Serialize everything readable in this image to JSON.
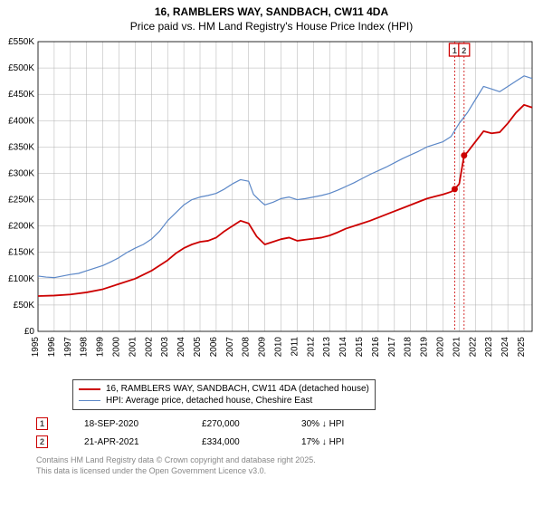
{
  "title_line1": "16, RAMBLERS WAY, SANDBACH, CW11 4DA",
  "title_line2": "Price paid vs. HM Land Registry's House Price Index (HPI)",
  "chart": {
    "type": "line",
    "background_color": "#ffffff",
    "grid_color": "#b0b0b0",
    "axis_color": "#000000",
    "tick_fontsize": 10,
    "xlim": [
      1995,
      2025.5
    ],
    "ylim": [
      0,
      550000
    ],
    "ytick_step": 50000,
    "ytick_labels": [
      "£0",
      "£50K",
      "£100K",
      "£150K",
      "£200K",
      "£250K",
      "£300K",
      "£350K",
      "£400K",
      "£450K",
      "£500K",
      "£550K"
    ],
    "xtick_step": 1,
    "xtick_labels": [
      "1995",
      "1996",
      "1997",
      "1998",
      "1999",
      "2000",
      "2001",
      "2002",
      "2003",
      "2004",
      "2005",
      "2006",
      "2007",
      "2008",
      "2009",
      "2010",
      "2011",
      "2012",
      "2013",
      "2014",
      "2015",
      "2016",
      "2017",
      "2018",
      "2019",
      "2020",
      "2021",
      "2022",
      "2023",
      "2024",
      "2025"
    ],
    "series": [
      {
        "name": "hpi",
        "label": "HPI: Average price, detached house, Cheshire East",
        "color": "#5b87c7",
        "line_width": 1.2,
        "data": [
          [
            1995.0,
            105000
          ],
          [
            1995.5,
            103000
          ],
          [
            1996.0,
            102000
          ],
          [
            1996.5,
            105000
          ],
          [
            1997.0,
            108000
          ],
          [
            1997.5,
            110000
          ],
          [
            1998.0,
            115000
          ],
          [
            1998.5,
            120000
          ],
          [
            1999.0,
            125000
          ],
          [
            1999.5,
            132000
          ],
          [
            2000.0,
            140000
          ],
          [
            2000.5,
            150000
          ],
          [
            2001.0,
            158000
          ],
          [
            2001.5,
            165000
          ],
          [
            2002.0,
            175000
          ],
          [
            2002.5,
            190000
          ],
          [
            2003.0,
            210000
          ],
          [
            2003.5,
            225000
          ],
          [
            2004.0,
            240000
          ],
          [
            2004.5,
            250000
          ],
          [
            2005.0,
            255000
          ],
          [
            2005.5,
            258000
          ],
          [
            2006.0,
            262000
          ],
          [
            2006.5,
            270000
          ],
          [
            2007.0,
            280000
          ],
          [
            2007.5,
            288000
          ],
          [
            2008.0,
            285000
          ],
          [
            2008.3,
            260000
          ],
          [
            2008.7,
            248000
          ],
          [
            2009.0,
            240000
          ],
          [
            2009.5,
            245000
          ],
          [
            2010.0,
            252000
          ],
          [
            2010.5,
            255000
          ],
          [
            2011.0,
            250000
          ],
          [
            2011.5,
            252000
          ],
          [
            2012.0,
            255000
          ],
          [
            2012.5,
            258000
          ],
          [
            2013.0,
            262000
          ],
          [
            2013.5,
            268000
          ],
          [
            2014.0,
            275000
          ],
          [
            2014.5,
            282000
          ],
          [
            2015.0,
            290000
          ],
          [
            2015.5,
            298000
          ],
          [
            2016.0,
            305000
          ],
          [
            2016.5,
            312000
          ],
          [
            2017.0,
            320000
          ],
          [
            2017.5,
            328000
          ],
          [
            2018.0,
            335000
          ],
          [
            2018.5,
            342000
          ],
          [
            2019.0,
            350000
          ],
          [
            2019.5,
            355000
          ],
          [
            2020.0,
            360000
          ],
          [
            2020.5,
            370000
          ],
          [
            2021.0,
            395000
          ],
          [
            2021.5,
            415000
          ],
          [
            2022.0,
            440000
          ],
          [
            2022.5,
            465000
          ],
          [
            2023.0,
            460000
          ],
          [
            2023.5,
            455000
          ],
          [
            2024.0,
            465000
          ],
          [
            2024.5,
            475000
          ],
          [
            2025.0,
            485000
          ],
          [
            2025.5,
            480000
          ]
        ]
      },
      {
        "name": "price_paid",
        "label": "16, RAMBLERS WAY, SANDBACH, CW11 4DA (detached house)",
        "color": "#cc0000",
        "line_width": 1.8,
        "data": [
          [
            1995.0,
            67000
          ],
          [
            1996.0,
            68000
          ],
          [
            1997.0,
            70000
          ],
          [
            1998.0,
            74000
          ],
          [
            1999.0,
            80000
          ],
          [
            2000.0,
            90000
          ],
          [
            2001.0,
            100000
          ],
          [
            2002.0,
            115000
          ],
          [
            2003.0,
            135000
          ],
          [
            2003.5,
            148000
          ],
          [
            2004.0,
            158000
          ],
          [
            2004.5,
            165000
          ],
          [
            2005.0,
            170000
          ],
          [
            2005.5,
            172000
          ],
          [
            2006.0,
            178000
          ],
          [
            2006.5,
            190000
          ],
          [
            2007.0,
            200000
          ],
          [
            2007.5,
            210000
          ],
          [
            2008.0,
            205000
          ],
          [
            2008.5,
            180000
          ],
          [
            2009.0,
            165000
          ],
          [
            2009.5,
            170000
          ],
          [
            2010.0,
            175000
          ],
          [
            2010.5,
            178000
          ],
          [
            2011.0,
            172000
          ],
          [
            2011.5,
            174000
          ],
          [
            2012.0,
            176000
          ],
          [
            2012.5,
            178000
          ],
          [
            2013.0,
            182000
          ],
          [
            2013.5,
            188000
          ],
          [
            2014.0,
            195000
          ],
          [
            2014.5,
            200000
          ],
          [
            2015.0,
            205000
          ],
          [
            2015.5,
            210000
          ],
          [
            2016.0,
            216000
          ],
          [
            2016.5,
            222000
          ],
          [
            2017.0,
            228000
          ],
          [
            2017.5,
            234000
          ],
          [
            2018.0,
            240000
          ],
          [
            2018.5,
            246000
          ],
          [
            2019.0,
            252000
          ],
          [
            2019.5,
            256000
          ],
          [
            2020.0,
            260000
          ],
          [
            2020.5,
            265000
          ],
          [
            2020.72,
            270000
          ],
          [
            2021.0,
            280000
          ],
          [
            2021.3,
            334000
          ],
          [
            2021.5,
            340000
          ],
          [
            2022.0,
            360000
          ],
          [
            2022.5,
            380000
          ],
          [
            2023.0,
            376000
          ],
          [
            2023.5,
            378000
          ],
          [
            2024.0,
            395000
          ],
          [
            2024.5,
            415000
          ],
          [
            2025.0,
            430000
          ],
          [
            2025.5,
            425000
          ]
        ]
      }
    ],
    "markers": [
      {
        "series": "price_paid",
        "x": 2020.72,
        "y": 270000,
        "size": 3.5,
        "color": "#cc0000"
      },
      {
        "series": "price_paid",
        "x": 2021.3,
        "y": 334000,
        "size": 3.5,
        "color": "#cc0000"
      }
    ],
    "vlines": [
      {
        "x": 2020.72,
        "color": "#cc0000",
        "dash": "2,2",
        "width": 0.8
      },
      {
        "x": 2021.3,
        "color": "#cc0000",
        "dash": "2,2",
        "width": 0.8
      }
    ],
    "vline_labels": [
      {
        "x": 2020.72,
        "text": "1",
        "font_size": 9,
        "border_color": "#cc0000",
        "text_color": "#404040"
      },
      {
        "x": 2021.3,
        "text": "2",
        "font_size": 9,
        "border_color": "#cc0000",
        "text_color": "#404040"
      }
    ]
  },
  "legend": {
    "border_color": "#444444",
    "items": [
      {
        "color": "#cc0000",
        "label": "16, RAMBLERS WAY, SANDBACH, CW11 4DA (detached house)",
        "line_width": 2
      },
      {
        "color": "#5b87c7",
        "label": "HPI: Average price, detached house, Cheshire East",
        "line_width": 1.2
      }
    ]
  },
  "events": [
    {
      "badge": "1",
      "date": "18-SEP-2020",
      "price": "£270,000",
      "delta": "30% ↓ HPI"
    },
    {
      "badge": "2",
      "date": "21-APR-2021",
      "price": "£334,000",
      "delta": "17% ↓ HPI"
    }
  ],
  "footer_line1": "Contains HM Land Registry data © Crown copyright and database right 2025.",
  "footer_line2": "This data is licensed under the Open Government Licence v3.0."
}
